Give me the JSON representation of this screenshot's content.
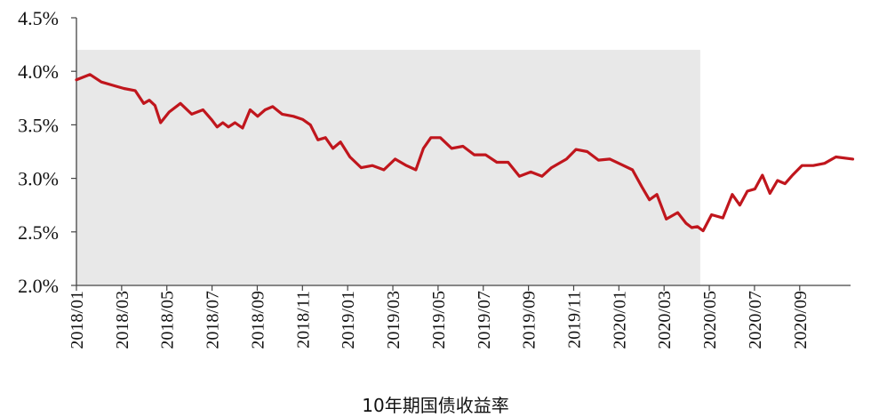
{
  "chart_data": {
    "type": "line",
    "title": "",
    "xlabel": "",
    "ylabel": "",
    "ylim": [
      2.0,
      4.5
    ],
    "y_ticks": [
      "2.0%",
      "2.5%",
      "3.0%",
      "3.5%",
      "4.0%",
      "4.5%"
    ],
    "x_ticks": [
      "2018/01",
      "2018/03",
      "2018/05",
      "2018/07",
      "2018/09",
      "2018/11",
      "2019/01",
      "2019/03",
      "2019/05",
      "2019/07",
      "2019/09",
      "2019/11",
      "2020/01",
      "2020/03",
      "2020/05",
      "2020/07",
      "2020/09"
    ],
    "grid": false,
    "shaded_region": {
      "x_start": "2018/01",
      "x_end": "2020/04",
      "color": "#e8e8e8"
    },
    "series": [
      {
        "name": "10年期国债收益率",
        "color": "#c0161d",
        "points": [
          [
            "2018/01",
            3.92
          ],
          [
            "2018/01",
            3.97
          ],
          [
            "2018/02",
            3.9
          ],
          [
            "2018/02",
            3.87
          ],
          [
            "2018/03",
            3.84
          ],
          [
            "2018/03",
            3.82
          ],
          [
            "2018/04",
            3.7
          ],
          [
            "2018/04",
            3.73
          ],
          [
            "2018/04",
            3.68
          ],
          [
            "2018/04",
            3.52
          ],
          [
            "2018/05",
            3.62
          ],
          [
            "2018/05",
            3.7
          ],
          [
            "2018/06",
            3.6
          ],
          [
            "2018/06",
            3.64
          ],
          [
            "2018/07",
            3.55
          ],
          [
            "2018/07",
            3.48
          ],
          [
            "2018/07",
            3.52
          ],
          [
            "2018/07",
            3.48
          ],
          [
            "2018/08",
            3.52
          ],
          [
            "2018/08",
            3.47
          ],
          [
            "2018/08",
            3.64
          ],
          [
            "2018/09",
            3.58
          ],
          [
            "2018/09",
            3.64
          ],
          [
            "2018/09",
            3.67
          ],
          [
            "2018/10",
            3.6
          ],
          [
            "2018/10",
            3.58
          ],
          [
            "2018/11",
            3.55
          ],
          [
            "2018/11",
            3.5
          ],
          [
            "2018/11",
            3.36
          ],
          [
            "2018/12",
            3.38
          ],
          [
            "2018/12",
            3.28
          ],
          [
            "2018/12",
            3.34
          ],
          [
            "2019/01",
            3.2
          ],
          [
            "2019/01",
            3.1
          ],
          [
            "2019/02",
            3.12
          ],
          [
            "2019/02",
            3.08
          ],
          [
            "2019/03",
            3.18
          ],
          [
            "2019/03",
            3.12
          ],
          [
            "2019/04",
            3.08
          ],
          [
            "2019/04",
            3.28
          ],
          [
            "2019/04",
            3.38
          ],
          [
            "2019/05",
            3.38
          ],
          [
            "2019/05",
            3.28
          ],
          [
            "2019/06",
            3.3
          ],
          [
            "2019/06",
            3.22
          ],
          [
            "2019/07",
            3.22
          ],
          [
            "2019/07",
            3.15
          ],
          [
            "2019/08",
            3.15
          ],
          [
            "2019/08",
            3.02
          ],
          [
            "2019/09",
            3.06
          ],
          [
            "2019/09",
            3.02
          ],
          [
            "2019/10",
            3.1
          ],
          [
            "2019/10",
            3.14
          ],
          [
            "2019/10",
            3.18
          ],
          [
            "2019/11",
            3.27
          ],
          [
            "2019/11",
            3.25
          ],
          [
            "2019/12",
            3.17
          ],
          [
            "2019/12",
            3.18
          ],
          [
            "2020/01",
            3.13
          ],
          [
            "2020/01",
            3.08
          ],
          [
            "2020/02",
            2.92
          ],
          [
            "2020/02",
            2.8
          ],
          [
            "2020/02",
            2.85
          ],
          [
            "2020/03",
            2.62
          ],
          [
            "2020/03",
            2.68
          ],
          [
            "2020/04",
            2.58
          ],
          [
            "2020/04",
            2.54
          ],
          [
            "2020/04",
            2.55
          ],
          [
            "2020/04",
            2.51
          ],
          [
            "2020/05",
            2.66
          ],
          [
            "2020/05",
            2.63
          ],
          [
            "2020/06",
            2.85
          ],
          [
            "2020/06",
            2.75
          ],
          [
            "2020/06",
            2.88
          ],
          [
            "2020/07",
            2.9
          ],
          [
            "2020/07",
            3.03
          ],
          [
            "2020/07",
            2.86
          ],
          [
            "2020/08",
            2.98
          ],
          [
            "2020/08",
            2.95
          ],
          [
            "2020/08",
            3.03
          ],
          [
            "2020/09",
            3.12
          ],
          [
            "2020/09",
            3.12
          ],
          [
            "2020/10",
            3.14
          ],
          [
            "2020/10",
            3.2
          ],
          [
            "2020/11",
            3.18
          ]
        ]
      }
    ],
    "legend": {
      "label": "10年期国债收益率",
      "placement": "bottom"
    }
  }
}
